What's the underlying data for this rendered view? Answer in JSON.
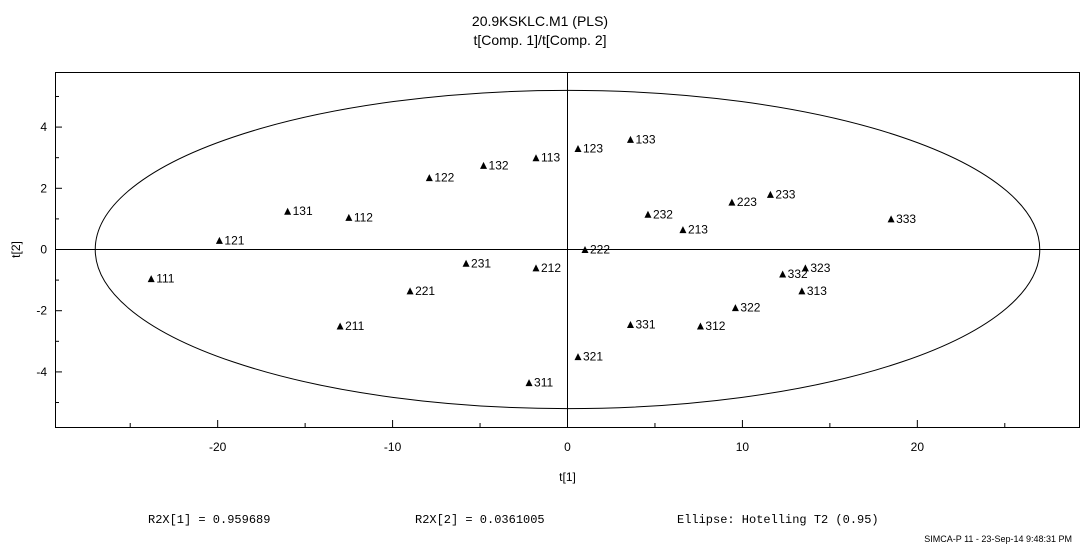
{
  "chart_data": {
    "type": "scatter",
    "title": "20.9KSKLC.M1 (PLS)",
    "subtitle": "t[Comp. 1]/t[Comp. 2]",
    "xlabel": "t[1]",
    "ylabel": "t[2]",
    "xlim": [
      -29.3,
      29.3
    ],
    "ylim": [
      -5.8,
      5.8
    ],
    "xticks": [
      -20,
      -10,
      0,
      10,
      20
    ],
    "yticks": [
      -4,
      -2,
      0,
      2,
      4
    ],
    "grid": false,
    "marker": "triangle",
    "ellipse": {
      "a": 27.0,
      "b": 5.2,
      "label": "Ellipse: Hotelling T2 (0.95)"
    },
    "points": [
      {
        "label": "111",
        "x": -23.8,
        "y": -0.95
      },
      {
        "label": "121",
        "x": -19.9,
        "y": 0.3
      },
      {
        "label": "131",
        "x": -16.0,
        "y": 1.25
      },
      {
        "label": "112",
        "x": -12.5,
        "y": 1.05
      },
      {
        "label": "122",
        "x": -7.9,
        "y": 2.35
      },
      {
        "label": "132",
        "x": -4.8,
        "y": 2.75
      },
      {
        "label": "113",
        "x": -1.8,
        "y": 3.0
      },
      {
        "label": "123",
        "x": 0.6,
        "y": 3.3
      },
      {
        "label": "133",
        "x": 3.6,
        "y": 3.6
      },
      {
        "label": "211",
        "x": -13.0,
        "y": -2.5
      },
      {
        "label": "221",
        "x": -9.0,
        "y": -1.35
      },
      {
        "label": "231",
        "x": -5.8,
        "y": -0.45
      },
      {
        "label": "212",
        "x": -1.8,
        "y": -0.6
      },
      {
        "label": "222",
        "x": 1.0,
        "y": 0.0
      },
      {
        "label": "232",
        "x": 4.6,
        "y": 1.15
      },
      {
        "label": "213",
        "x": 6.6,
        "y": 0.65
      },
      {
        "label": "223",
        "x": 9.4,
        "y": 1.55
      },
      {
        "label": "233",
        "x": 11.6,
        "y": 1.8
      },
      {
        "label": "311",
        "x": -2.2,
        "y": -4.35
      },
      {
        "label": "321",
        "x": 0.6,
        "y": -3.5
      },
      {
        "label": "331",
        "x": 3.6,
        "y": -2.45
      },
      {
        "label": "312",
        "x": 7.6,
        "y": -2.5
      },
      {
        "label": "322",
        "x": 9.6,
        "y": -1.9
      },
      {
        "label": "332",
        "x": 12.3,
        "y": -0.8
      },
      {
        "label": "313",
        "x": 13.4,
        "y": -1.35
      },
      {
        "label": "323",
        "x": 13.6,
        "y": -0.6
      },
      {
        "label": "333",
        "x": 18.5,
        "y": 1.0
      }
    ],
    "stats": {
      "r2x1": "R2X[1] = 0.959689",
      "r2x2": "R2X[2] = 0.0361005",
      "ellipse": "Ellipse: Hotelling T2 (0.95)"
    },
    "footer": "SIMCA-P 11 - 23-Sep-14 9:48:31 PM"
  }
}
